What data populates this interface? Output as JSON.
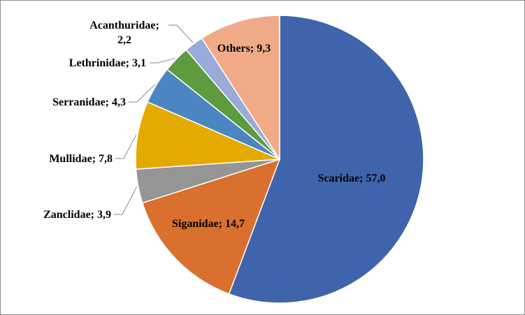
{
  "chart_data": {
    "type": "pie",
    "title": "",
    "label_format": "{name}; {value}",
    "slices": [
      {
        "name": "Scaridae",
        "value": 57.0,
        "label": "Scaridae; 57,0",
        "color": "#3F64AB"
      },
      {
        "name": "Siganidae",
        "value": 14.7,
        "label": "Siganidae; 14,7",
        "color": "#D9702E"
      },
      {
        "name": "Zanclidae",
        "value": 3.9,
        "label": "Zanclidae; 3,9",
        "color": "#959595"
      },
      {
        "name": "Mullidae",
        "value": 7.8,
        "label": "Mullidae; 7,8",
        "color": "#E3AA00"
      },
      {
        "name": "Serranidae",
        "value": 4.3,
        "label": "Serranidae; 4,3",
        "color": "#4C86C2"
      },
      {
        "name": "Lethrinidae",
        "value": 3.1,
        "label": "Lethrinidae; 3,1",
        "color": "#5E9A3E"
      },
      {
        "name": "Acanthuridae",
        "value": 2.2,
        "label": "Acanthuridae; 2,2",
        "label_lines": [
          "Acanthuridae;",
          "2,2"
        ],
        "color": "#9AAAD9"
      },
      {
        "name": "Others",
        "value": 9.3,
        "label": "Others; 9,3",
        "color": "#F1AA88"
      }
    ]
  }
}
